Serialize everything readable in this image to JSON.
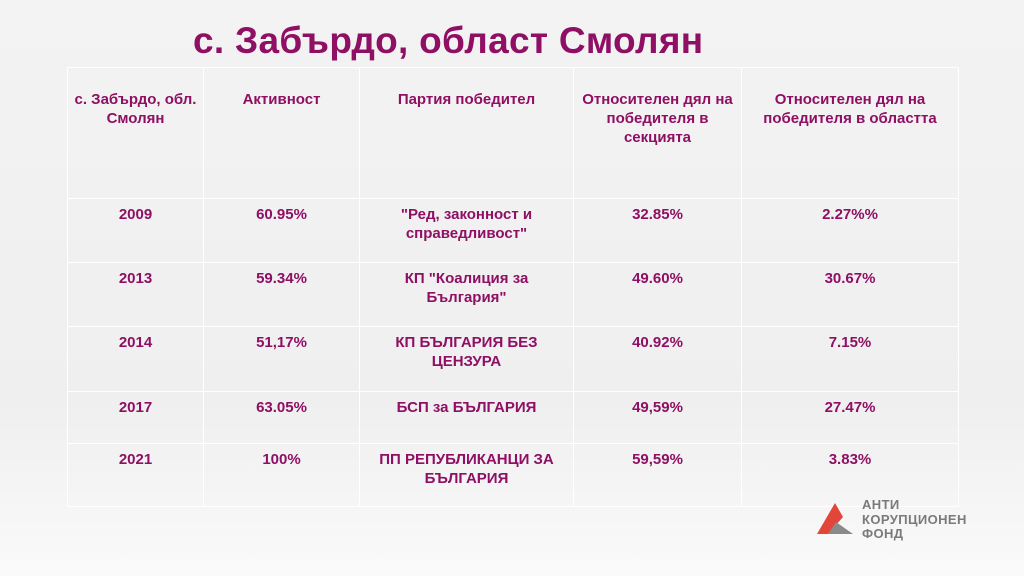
{
  "title": "с. Забърдо, област Смолян",
  "table": {
    "headers": [
      "с. Забърдо, обл. Смолян",
      "Активност",
      "Партия победител",
      "Относителен дял на победителя в секцията",
      "Относителен дял на победителя в областта"
    ],
    "rows": [
      [
        "2009",
        "60.95%",
        "\"Ред, законност и справедливост\"",
        "32.85%",
        "2.27%%"
      ],
      [
        "2013",
        "59.34%",
        "КП \"Коалиция за България\"",
        "49.60%",
        "30.67%"
      ],
      [
        "2014",
        "51,17%",
        "КП БЪЛГАРИЯ БЕЗ ЦЕНЗУРА",
        "40.92%",
        "7.15%"
      ],
      [
        "2017",
        "63.05%",
        "БСП за БЪЛГАРИЯ",
        "49,59%",
        "27.47%"
      ],
      [
        "2021",
        "100%",
        "ПП РЕПУБЛИКАНЦИ ЗА БЪЛГАРИЯ",
        "59,59%",
        "3.83%"
      ]
    ]
  },
  "logo": {
    "line1": "АНТИ",
    "line2": "КОРУПЦИОНЕН",
    "line3": "ФОНД",
    "icon": "triangle-logo-icon",
    "colors": {
      "red": "#e2453a",
      "gray": "#8a8a8a"
    }
  },
  "colors": {
    "accent": "#8e0f63"
  }
}
